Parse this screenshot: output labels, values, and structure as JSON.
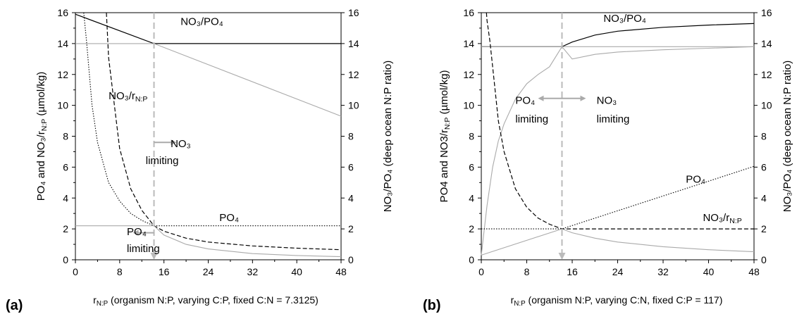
{
  "chart_data": [
    {
      "panel_label": "(a)",
      "type": "line",
      "xlabel_main": "r",
      "xlabel_sub": "N:P",
      "xlabel_rest": " (organism N:P, varying C:P, fixed C:N = 7.3125)",
      "ylabel_left": "PO₄ and NO₃/r",
      "ylabel_left_sub": "N:P",
      "ylabel_left_unit": " (µmol/kg)",
      "ylabel_right": "NO₃/PO₄ (deep ocean N:P ratio)",
      "xlim": [
        0,
        48
      ],
      "ylim": [
        0,
        16
      ],
      "xticks": [
        0,
        8,
        16,
        24,
        32,
        40,
        48
      ],
      "yticks": [
        0,
        2,
        4,
        6,
        8,
        10,
        12,
        14,
        16
      ],
      "threshold_x": 14.2,
      "annotations": [
        {
          "text": "NO₃/PO₄",
          "x": 19,
          "y": 15.2
        },
        {
          "text": "NO₃/r",
          "sub": "N:P",
          "x": 6,
          "y": 10.4
        },
        {
          "text": "PO₄",
          "x": 26,
          "y": 2.5
        },
        {
          "text": "NO₃",
          "x": 17.2,
          "y": 7.3
        },
        {
          "text": "limiting",
          "x": 12.7,
          "y": 6.2
        },
        {
          "text": "PO₄",
          "x": 9.3,
          "y": 1.6
        },
        {
          "text": "limiting",
          "x": 9.3,
          "y": 0.5
        }
      ],
      "series": [
        {
          "style": "solid-black",
          "x": [
            0,
            14.2,
            48
          ],
          "y": [
            15.9,
            14.0,
            14.0
          ]
        },
        {
          "style": "solid-gray",
          "x": [
            0,
            14.2,
            48
          ],
          "y": [
            14.0,
            14.0,
            9.3
          ]
        },
        {
          "style": "dotted-black",
          "x": [
            1.5,
            2,
            3,
            4,
            6,
            8,
            10,
            12,
            14.2,
            48
          ],
          "y": [
            16,
            14.2,
            10.0,
            7.6,
            5.0,
            3.8,
            3.0,
            2.55,
            2.2,
            2.2
          ]
        },
        {
          "style": "dashed-black",
          "x": [
            5.6,
            6,
            8,
            10,
            12,
            14.2,
            16,
            20,
            24,
            32,
            40,
            48
          ],
          "y": [
            16,
            13.1,
            7.2,
            4.6,
            3.2,
            2.2,
            1.85,
            1.4,
            1.15,
            0.9,
            0.75,
            0.65
          ]
        },
        {
          "style": "solid-gray",
          "x": [
            0,
            14.2,
            16,
            20,
            24,
            32,
            40,
            48
          ],
          "y": [
            2.2,
            2.2,
            1.6,
            1.0,
            0.7,
            0.4,
            0.28,
            0.2
          ]
        }
      ]
    },
    {
      "panel_label": "(b)",
      "type": "line",
      "xlabel_main": "r",
      "xlabel_sub": "N:P",
      "xlabel_rest": " (organism N:P, varying C:N, fixed C:P = 117)",
      "ylabel_left": "PO4 and NO3/r",
      "ylabel_left_sub": "N:P",
      "ylabel_left_unit": " (µmol/kg)",
      "ylabel_right": "NO₃/PO₄ (deep ocean N:P ratio)",
      "xlim": [
        0,
        48
      ],
      "ylim": [
        0,
        16
      ],
      "xticks": [
        0,
        8,
        16,
        24,
        32,
        40,
        48
      ],
      "yticks": [
        0,
        2,
        4,
        6,
        8,
        10,
        12,
        14,
        16
      ],
      "threshold_x": 14.2,
      "annotations": [
        {
          "text": "NO₃/PO₄",
          "x": 21.5,
          "y": 15.4
        },
        {
          "text": "PO₄",
          "x": 6,
          "y": 10.1
        },
        {
          "text": "limiting",
          "x": 6,
          "y": 8.9
        },
        {
          "text": "NO₃",
          "x": 20.3,
          "y": 10.1
        },
        {
          "text": "limiting",
          "x": 20.3,
          "y": 8.9
        },
        {
          "text": "PO₄",
          "x": 36,
          "y": 5.0
        },
        {
          "text": "NO₃/r",
          "sub": "N:P",
          "x": 39,
          "y": 2.5
        }
      ],
      "series": [
        {
          "style": "solid-black",
          "x": [
            0,
            14.2,
            16,
            20,
            24,
            32,
            40,
            48
          ],
          "y": [
            13.8,
            13.8,
            14.1,
            14.55,
            14.8,
            15.05,
            15.2,
            15.3
          ]
        },
        {
          "style": "solid-gray",
          "x": [
            0,
            48
          ],
          "y": [
            13.8,
            13.8
          ]
        },
        {
          "style": "solid-gray",
          "x": [
            0,
            1,
            2,
            3,
            4,
            6,
            8,
            10,
            12,
            14.2,
            16,
            20,
            24,
            32,
            40,
            48
          ],
          "y": [
            0.3,
            3.5,
            6.0,
            7.7,
            8.8,
            10.4,
            11.4,
            12.0,
            12.5,
            13.8,
            13.0,
            13.3,
            13.45,
            13.6,
            13.7,
            13.8
          ]
        },
        {
          "style": "dashed-black",
          "x": [
            0.9,
            1,
            1.5,
            2,
            3,
            4,
            6,
            8,
            10,
            12,
            14.2,
            48
          ],
          "y": [
            16,
            15.5,
            14.2,
            12.5,
            9.0,
            7.0,
            4.6,
            3.4,
            2.7,
            2.3,
            2.0,
            2.0
          ]
        },
        {
          "style": "dotted-black",
          "x": [
            0,
            14.2,
            48
          ],
          "y": [
            2.0,
            2.0,
            6.05
          ]
        },
        {
          "style": "solid-gray",
          "x": [
            0,
            14.2
          ],
          "y": [
            0.3,
            2.0
          ]
        },
        {
          "style": "solid-gray",
          "x": [
            14.2,
            16,
            20,
            24,
            32,
            40,
            48
          ],
          "y": [
            2.0,
            1.75,
            1.4,
            1.15,
            0.85,
            0.65,
            0.52
          ]
        }
      ]
    }
  ]
}
